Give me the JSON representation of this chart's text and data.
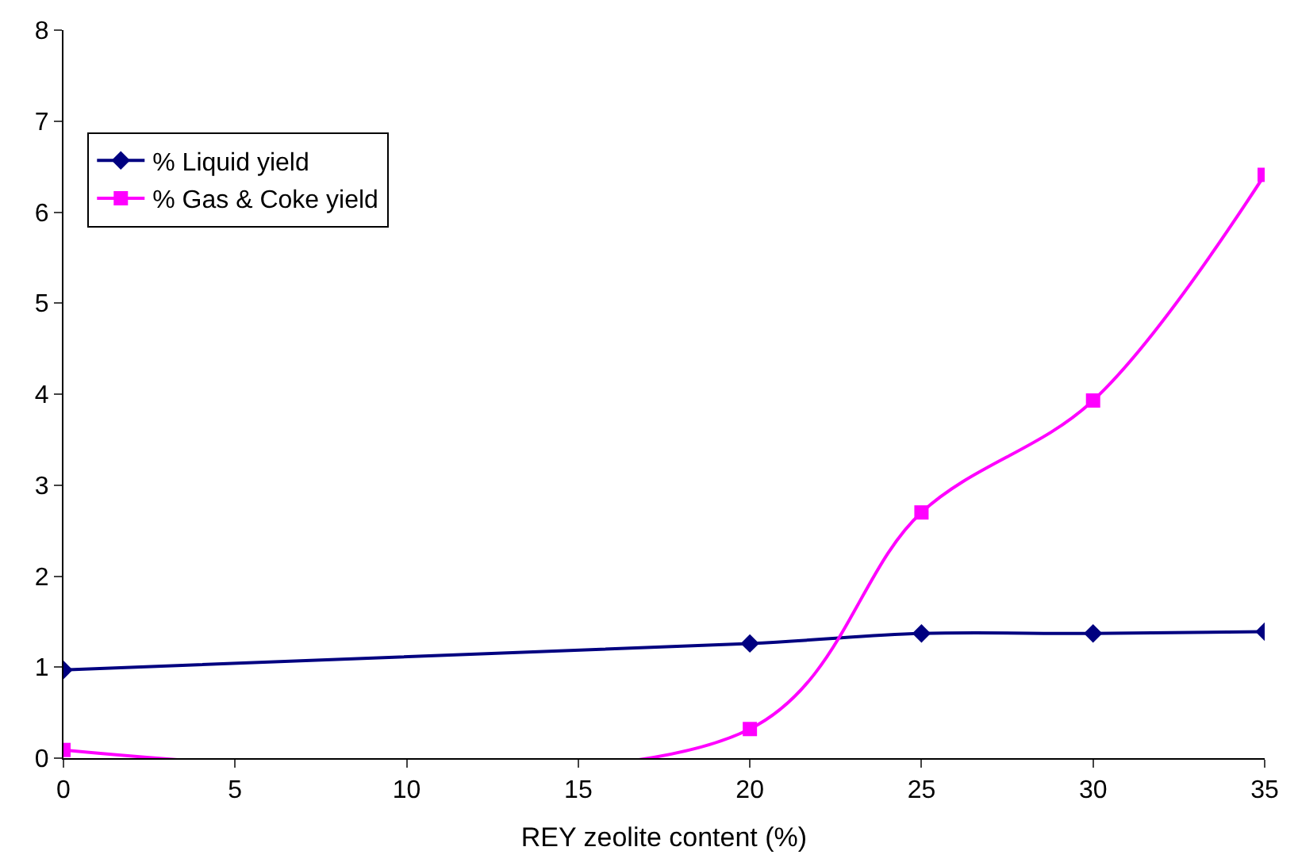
{
  "chart_data": {
    "type": "line",
    "xlabel": "REY zeolite content (%)",
    "x": [
      0,
      20,
      25,
      30,
      35
    ],
    "series": [
      {
        "name": "% Liquid yield",
        "color": "#000080",
        "marker": "diamond",
        "values": [
          0.97,
          1.26,
          1.37,
          1.37,
          1.39
        ]
      },
      {
        "name": "% Gas & Coke yield",
        "color": "#ff00ff",
        "marker": "square",
        "values": [
          0.09,
          0.32,
          2.7,
          3.93,
          6.41
        ]
      }
    ],
    "xlim": [
      0,
      35
    ],
    "xticks": [
      0,
      5,
      10,
      15,
      20,
      25,
      30,
      35
    ],
    "ylim": [
      0,
      8
    ],
    "yticks": [
      0,
      1,
      2,
      3,
      4,
      5,
      6,
      7,
      8
    ],
    "grid": false,
    "legend": "top left",
    "line_style": "solid"
  }
}
